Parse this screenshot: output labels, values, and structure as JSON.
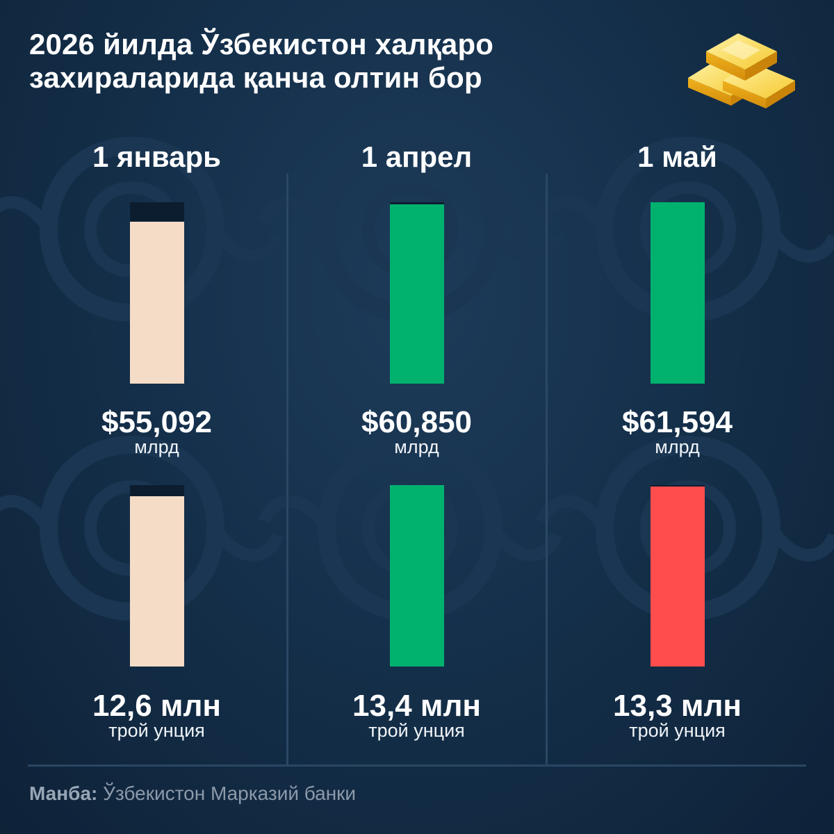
{
  "title": {
    "line1": "2026 йилда Ўзбекистон халқаро",
    "line2": "захираларида қанча олтин бор"
  },
  "icons": {
    "header": "gold-bars-icon"
  },
  "colors": {
    "background": "#15304b",
    "track": "#0c1d30",
    "neutral": "#f5dcc6",
    "increase": "#00b26e",
    "decrease": "#ff4d4d"
  },
  "chart_data": [
    {
      "type": "bar",
      "categories": [
        "1 январь",
        "1 апрел",
        "1 май"
      ],
      "values": [
        55.092,
        60.85,
        61.594
      ],
      "value_labels": [
        "$55,092",
        "$60,850",
        "$61,594"
      ],
      "unit_label": "млрд",
      "ylim": [
        0,
        61.594
      ],
      "bar_colors": [
        "#f5dcc6",
        "#00b26e",
        "#00b26e"
      ]
    },
    {
      "type": "bar",
      "categories": [
        "1 январь",
        "1 апрел",
        "1 май"
      ],
      "values": [
        12.6,
        13.4,
        13.3
      ],
      "value_labels": [
        "12,6 млн",
        "13,4 млн",
        "13,3 млн"
      ],
      "unit_label": "трой унция",
      "ylim": [
        0,
        13.4
      ],
      "bar_colors": [
        "#f5dcc6",
        "#00b26e",
        "#ff4d4d"
      ]
    }
  ],
  "source": {
    "label": "Манба:",
    "text": " Ўзбекистон Марказий банки"
  }
}
